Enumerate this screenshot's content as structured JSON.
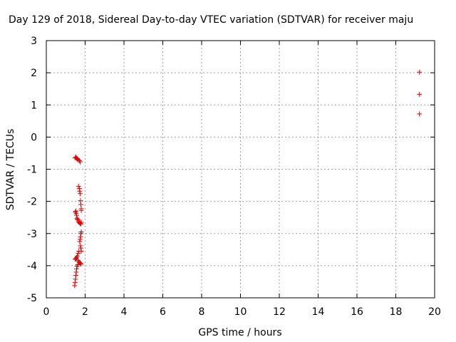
{
  "chart_data": {
    "type": "scatter",
    "title": "Day 129 of 2018, Sidereal Day-to-day VTEC variation (SDTVAR) for receiver maju",
    "xlabel": "GPS time / hours",
    "ylabel": "SDTVAR / TECUs",
    "xlim": [
      0,
      20
    ],
    "ylim": [
      -5,
      3
    ],
    "xticks": [
      0,
      2,
      4,
      6,
      8,
      10,
      12,
      14,
      16,
      18,
      20
    ],
    "yticks": [
      -5,
      -4,
      -3,
      -2,
      -1,
      0,
      1,
      2,
      3
    ],
    "grid": true,
    "marker": "+",
    "color": "#e00000",
    "series": [
      {
        "name": "SDTVAR",
        "points": [
          [
            1.48,
            -0.65
          ],
          [
            1.52,
            -0.62
          ],
          [
            1.56,
            -0.66
          ],
          [
            1.6,
            -0.68
          ],
          [
            1.64,
            -0.7
          ],
          [
            1.7,
            -0.73
          ],
          [
            1.74,
            -0.77
          ],
          [
            1.66,
            -1.53
          ],
          [
            1.7,
            -1.6
          ],
          [
            1.72,
            -1.68
          ],
          [
            1.74,
            -1.76
          ],
          [
            1.76,
            -1.98
          ],
          [
            1.78,
            -2.1
          ],
          [
            1.8,
            -2.23
          ],
          [
            1.8,
            -2.28
          ],
          [
            1.5,
            -2.33
          ],
          [
            1.52,
            -2.3
          ],
          [
            1.54,
            -2.37
          ],
          [
            1.56,
            -2.43
          ],
          [
            1.58,
            -2.52
          ],
          [
            1.6,
            -2.55
          ],
          [
            1.64,
            -2.58
          ],
          [
            1.66,
            -2.63
          ],
          [
            1.7,
            -2.66
          ],
          [
            1.74,
            -2.68
          ],
          [
            1.78,
            -2.7
          ],
          [
            1.8,
            -2.65
          ],
          [
            1.8,
            -2.95
          ],
          [
            1.78,
            -3.0
          ],
          [
            1.76,
            -3.1
          ],
          [
            1.74,
            -3.18
          ],
          [
            1.72,
            -3.25
          ],
          [
            1.76,
            -3.38
          ],
          [
            1.78,
            -3.45
          ],
          [
            1.8,
            -3.55
          ],
          [
            1.68,
            -3.55
          ],
          [
            1.64,
            -3.62
          ],
          [
            1.6,
            -3.7
          ],
          [
            1.56,
            -3.75
          ],
          [
            1.52,
            -3.78
          ],
          [
            1.48,
            -3.8
          ],
          [
            1.64,
            -3.84
          ],
          [
            1.68,
            -3.88
          ],
          [
            1.72,
            -3.9
          ],
          [
            1.76,
            -3.93
          ],
          [
            1.78,
            -3.95
          ],
          [
            1.62,
            -3.97
          ],
          [
            1.58,
            -4.02
          ],
          [
            1.56,
            -4.1
          ],
          [
            1.54,
            -4.2
          ],
          [
            1.52,
            -4.3
          ],
          [
            1.5,
            -4.42
          ],
          [
            1.48,
            -4.52
          ],
          [
            1.46,
            -4.62
          ],
          [
            19.22,
            2.02
          ],
          [
            19.22,
            1.33
          ],
          [
            19.22,
            0.72
          ]
        ]
      }
    ]
  }
}
